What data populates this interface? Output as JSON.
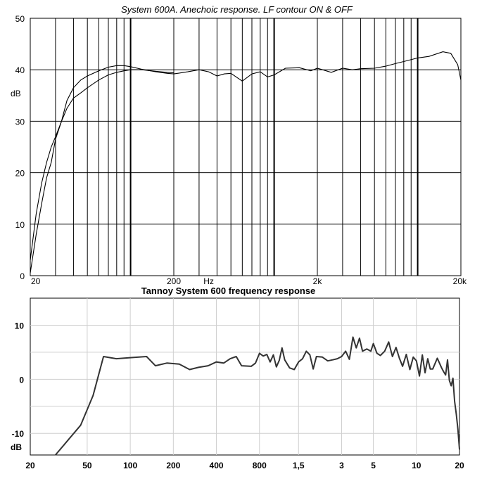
{
  "chart_data": [
    {
      "type": "line",
      "title": "System 600A. Anechoic response. LF contour ON & OFF",
      "xlabel": "Hz",
      "ylabel": "dB",
      "x_scale": "log",
      "xlim": [
        20,
        20000
      ],
      "ylim": [
        0,
        50
      ],
      "grid": true,
      "x_tick_labels": [
        "20",
        "200",
        "Hz",
        "2k",
        "20k"
      ],
      "y_tick_labels": [
        "0",
        "10",
        "20",
        "30",
        "40",
        "50"
      ],
      "series": [
        {
          "x": [
            20,
            22,
            24,
            26,
            28,
            30,
            33,
            36,
            40,
            45,
            50,
            60,
            70,
            80,
            90,
            100,
            120,
            150,
            180,
            200,
            250,
            300,
            350,
            400,
            450,
            500,
            600,
            700,
            800,
            900,
            1000,
            1200,
            1500,
            1800,
            2000,
            2500,
            3000,
            3500,
            4000,
            5000,
            6000,
            7000,
            8000,
            10000,
            12000,
            15000,
            17000,
            19000,
            20000
          ],
          "y": [
            3,
            12,
            18,
            22,
            25,
            27,
            30,
            34,
            36.5,
            38,
            38.8,
            39.8,
            40.5,
            40.8,
            40.8,
            40.6,
            40.1,
            39.6,
            39.3,
            39.2,
            39.6,
            40.0,
            39.6,
            38.8,
            39.2,
            39.3,
            37.8,
            39.2,
            39.6,
            38.6,
            39.0,
            40.3,
            40.4,
            39.8,
            40.3,
            39.5,
            40.3,
            40.0,
            40.2,
            40.3,
            40.7,
            41.2,
            41.6,
            42.3,
            42.6,
            43.5,
            43.2,
            41.0,
            38.0
          ]
        },
        {
          "x": [
            20,
            22,
            24,
            26,
            28,
            30,
            33,
            36,
            40,
            45,
            50,
            60,
            70,
            80,
            90,
            100,
            120,
            150,
            180,
            200
          ],
          "y": [
            0.5,
            8,
            14,
            19,
            22,
            26.5,
            30,
            32.5,
            34.5,
            35.5,
            36.5,
            38,
            39,
            39.5,
            39.8,
            40,
            40,
            39.7,
            39.5,
            39.4
          ]
        }
      ]
    },
    {
      "type": "line",
      "title": "Tannoy System 600 frequency response",
      "ylabel": "dB",
      "x_scale": "log",
      "xlim": [
        20,
        20000
      ],
      "ylim": [
        -14,
        15
      ],
      "grid": true,
      "x_tick_labels": [
        "20",
        "50",
        "100",
        "200",
        "400",
        "800",
        "1,5",
        "3",
        "5",
        "10",
        "20"
      ],
      "y_tick_labels": [
        "10",
        "0",
        "-10"
      ],
      "series": [
        {
          "x": [
            30,
            45,
            55,
            65,
            80,
            100,
            130,
            150,
            180,
            220,
            260,
            300,
            350,
            400,
            450,
            500,
            550,
            600,
            700,
            750,
            800,
            850,
            900,
            950,
            1000,
            1050,
            1100,
            1150,
            1200,
            1300,
            1400,
            1500,
            1600,
            1700,
            1800,
            1900,
            2000,
            2200,
            2400,
            2600,
            2800,
            3000,
            3200,
            3400,
            3600,
            3800,
            4000,
            4200,
            4500,
            4800,
            5000,
            5300,
            5600,
            6000,
            6400,
            6800,
            7200,
            7600,
            8000,
            8500,
            9000,
            9500,
            10000,
            10500,
            11000,
            11500,
            12000,
            12500,
            13000,
            14000,
            15000,
            15500,
            16000,
            16500,
            17000,
            17500,
            18000,
            18500,
            19000,
            19500,
            20000
          ],
          "y": [
            -14,
            -8.5,
            -3,
            4.2,
            3.8,
            4,
            4.2,
            2.5,
            3,
            2.8,
            1.8,
            2.2,
            2.5,
            3.2,
            3,
            3.8,
            4.2,
            2.5,
            2.4,
            3,
            4.8,
            4.3,
            4.6,
            3.2,
            4.5,
            2.3,
            3.5,
            5.8,
            3.6,
            2.1,
            1.8,
            3.2,
            3.8,
            5.2,
            4.5,
            1.9,
            4.2,
            4.1,
            3.4,
            3.6,
            3.8,
            4.2,
            5.2,
            3.7,
            7.8,
            5.8,
            7.6,
            5.2,
            5.6,
            5.2,
            6.6,
            4.8,
            4.4,
            5.2,
            6.9,
            4.2,
            5.9,
            3.9,
            2.4,
            4.6,
            1.8,
            4.1,
            3.4,
            0.6,
            4.5,
            1.2,
            3.8,
            1.9,
            1.9,
            3.9,
            2.1,
            1.4,
            0.8,
            3.6,
            -0.2,
            -1.2,
            0.2,
            -4.1,
            -6.5,
            -9.3,
            -13
          ]
        }
      ]
    }
  ]
}
